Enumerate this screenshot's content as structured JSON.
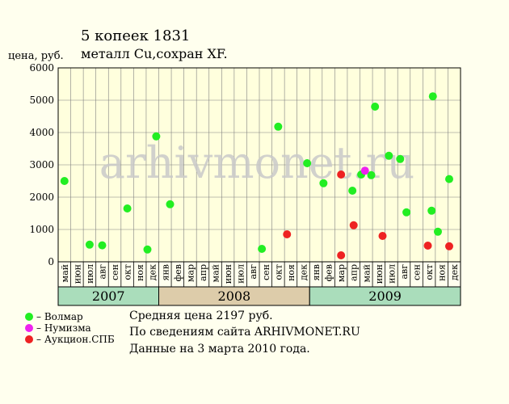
{
  "chart_data": {
    "type": "scatter",
    "title": "5 копеек 1831",
    "subtitle": "металл Cu,сохран XF.",
    "ylabel": "цена, руб.",
    "ylim": [
      0,
      6000
    ],
    "yticks": [
      0,
      1000,
      2000,
      3000,
      4000,
      5000,
      6000
    ],
    "grid": true,
    "legend_position": "bottom-left",
    "watermark": "arhivmonet.ru",
    "months": [
      "май",
      "июн",
      "июл",
      "авг",
      "сен",
      "окт",
      "ноя",
      "дек",
      "янв",
      "фев",
      "мар",
      "апр",
      "май",
      "июн",
      "июл",
      "авг",
      "сен",
      "окт",
      "ноя",
      "дек",
      "янв",
      "фев",
      "мар",
      "апр",
      "май",
      "июн",
      "июл",
      "авг",
      "сен",
      "окт",
      "ноя",
      "дек"
    ],
    "years": [
      {
        "label": "2007",
        "start": 0,
        "end": 8,
        "color": "#aaddbb"
      },
      {
        "label": "2008",
        "start": 8,
        "end": 20,
        "color": "#ddccaa"
      },
      {
        "label": "2009",
        "start": 20,
        "end": 32,
        "color": "#aaddbb"
      }
    ],
    "series": [
      {
        "name": "Волмар",
        "color": "#22ee22",
        "points": [
          {
            "x": 0.0,
            "y": 2500
          },
          {
            "x": 2.0,
            "y": 530
          },
          {
            "x": 3.0,
            "y": 510
          },
          {
            "x": 5.0,
            "y": 1650
          },
          {
            "x": 6.6,
            "y": 380
          },
          {
            "x": 7.3,
            "y": 3880
          },
          {
            "x": 8.4,
            "y": 1780
          },
          {
            "x": 15.7,
            "y": 400
          },
          {
            "x": 17.0,
            "y": 4180
          },
          {
            "x": 19.3,
            "y": 3050
          },
          {
            "x": 20.6,
            "y": 2430
          },
          {
            "x": 22.9,
            "y": 2200
          },
          {
            "x": 23.6,
            "y": 2700
          },
          {
            "x": 24.4,
            "y": 2680
          },
          {
            "x": 24.7,
            "y": 4800
          },
          {
            "x": 25.8,
            "y": 3280
          },
          {
            "x": 26.7,
            "y": 3180
          },
          {
            "x": 27.2,
            "y": 1530
          },
          {
            "x": 29.3,
            "y": 5120
          },
          {
            "x": 29.2,
            "y": 1580
          },
          {
            "x": 29.7,
            "y": 930
          },
          {
            "x": 30.6,
            "y": 2560
          }
        ]
      },
      {
        "name": "Нумизма",
        "color": "#ee22ee",
        "points": [
          {
            "x": 23.9,
            "y": 2820
          }
        ]
      },
      {
        "name": "Аукцион.СПБ",
        "color": "#ee2222",
        "points": [
          {
            "x": 17.7,
            "y": 850
          },
          {
            "x": 22.0,
            "y": 2700
          },
          {
            "x": 22.0,
            "y": 200
          },
          {
            "x": 23.0,
            "y": 1130
          },
          {
            "x": 25.3,
            "y": 800
          },
          {
            "x": 28.9,
            "y": 500
          },
          {
            "x": 30.6,
            "y": 480
          }
        ]
      }
    ]
  },
  "info": {
    "avg": "Средняя цена 2197 руб.",
    "source": "По  сведениям сайта ARHIVMONET.RU",
    "date": "Данные на 3 марта 2010 года."
  }
}
